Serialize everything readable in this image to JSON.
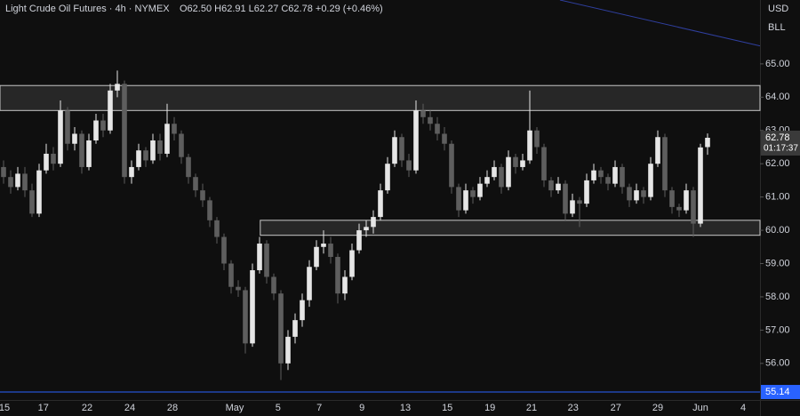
{
  "chart_data": {
    "type": "candlestick",
    "title": "Light Crude Oil Futures · 4h · NYMEX",
    "quote": "O62.50 H62.91 L62.27 C62.78 +0.29 (+0.46%)",
    "currency": "USD",
    "unit": "BLL",
    "up_color": "#e6e6e6",
    "down_color": "#5e5e5e",
    "ylim": [
      54.9,
      66.92
    ],
    "yticks": [
      {
        "value": 56,
        "label": "56.00"
      },
      {
        "value": 57,
        "label": "57.00"
      },
      {
        "value": 58,
        "label": "58.00"
      },
      {
        "value": 59,
        "label": "59.00"
      },
      {
        "value": 60,
        "label": "60.00"
      },
      {
        "value": 61,
        "label": "61.00"
      },
      {
        "value": 62,
        "label": "62.00"
      },
      {
        "value": 63,
        "label": "63.00"
      },
      {
        "value": 64,
        "label": "64.00"
      },
      {
        "value": 65,
        "label": "65.00"
      }
    ],
    "xlim": [
      -0.5,
      106.375
    ],
    "xticks": [
      {
        "value": 0.125,
        "label": "15"
      },
      {
        "value": 5.6,
        "label": "17"
      },
      {
        "value": 11.75,
        "label": "22"
      },
      {
        "value": 17.75,
        "label": "24"
      },
      {
        "value": 23.75,
        "label": "28"
      },
      {
        "value": 32.5,
        "label": "May"
      },
      {
        "value": 38.6,
        "label": "5"
      },
      {
        "value": 44.4,
        "label": "7"
      },
      {
        "value": 50.4,
        "label": "9"
      },
      {
        "value": 56.5,
        "label": "13"
      },
      {
        "value": 62.4,
        "label": "15"
      },
      {
        "value": 68.4,
        "label": "19"
      },
      {
        "value": 74.25,
        "label": "21"
      },
      {
        "value": 80.1,
        "label": "23"
      },
      {
        "value": 86.1,
        "label": "27"
      },
      {
        "value": 92,
        "label": "29"
      },
      {
        "value": 98,
        "label": "Jun"
      },
      {
        "value": 104,
        "label": "4"
      }
    ],
    "candles": [
      [
        61.9,
        62.1,
        61.4,
        61.6
      ],
      [
        61.6,
        61.8,
        61.1,
        61.3
      ],
      [
        61.3,
        61.9,
        61.2,
        61.7
      ],
      [
        61.7,
        61.9,
        61.0,
        61.2
      ],
      [
        61.2,
        61.4,
        60.4,
        60.5
      ],
      [
        60.5,
        62.0,
        60.4,
        61.8
      ],
      [
        61.8,
        62.6,
        61.7,
        62.3
      ],
      [
        62.3,
        62.5,
        61.8,
        62.0
      ],
      [
        62.0,
        63.9,
        61.9,
        63.6
      ],
      [
        63.6,
        63.7,
        62.4,
        62.6
      ],
      [
        62.6,
        63.1,
        62.4,
        62.9
      ],
      [
        62.9,
        63.0,
        61.7,
        61.9
      ],
      [
        61.9,
        62.9,
        61.8,
        62.7
      ],
      [
        62.7,
        63.5,
        62.6,
        63.3
      ],
      [
        63.3,
        63.5,
        62.8,
        63.0
      ],
      [
        63.0,
        64.4,
        62.9,
        64.2
      ],
      [
        64.2,
        64.8,
        64.0,
        64.4
      ],
      [
        64.4,
        64.5,
        61.4,
        61.6
      ],
      [
        61.6,
        62.1,
        61.4,
        61.9
      ],
      [
        61.9,
        62.6,
        61.8,
        62.4
      ],
      [
        62.4,
        62.5,
        61.9,
        62.1
      ],
      [
        62.1,
        62.9,
        62.0,
        62.7
      ],
      [
        62.7,
        62.9,
        62.1,
        62.3
      ],
      [
        62.3,
        63.8,
        62.2,
        63.2
      ],
      [
        63.2,
        63.4,
        62.7,
        62.9
      ],
      [
        62.9,
        63.0,
        62.0,
        62.2
      ],
      [
        62.2,
        62.3,
        61.4,
        61.6
      ],
      [
        61.6,
        61.7,
        61.0,
        61.2
      ],
      [
        61.2,
        61.4,
        60.7,
        60.9
      ],
      [
        60.9,
        61.0,
        60.1,
        60.3
      ],
      [
        60.3,
        60.4,
        59.6,
        59.8
      ],
      [
        59.8,
        59.9,
        58.8,
        59.0
      ],
      [
        59.0,
        59.1,
        58.1,
        58.3
      ],
      [
        58.3,
        58.5,
        58.0,
        58.2
      ],
      [
        58.2,
        58.3,
        56.3,
        56.6
      ],
      [
        56.6,
        59.0,
        56.5,
        58.8
      ],
      [
        58.8,
        59.8,
        58.7,
        59.6
      ],
      [
        59.6,
        59.7,
        58.4,
        58.6
      ],
      [
        58.6,
        58.7,
        57.9,
        58.1
      ],
      [
        58.1,
        58.2,
        55.5,
        56.0
      ],
      [
        56.0,
        57.0,
        55.8,
        56.8
      ],
      [
        56.8,
        57.5,
        56.6,
        57.3
      ],
      [
        57.3,
        58.1,
        57.1,
        57.9
      ],
      [
        57.9,
        59.1,
        57.7,
        58.9
      ],
      [
        58.9,
        59.7,
        58.8,
        59.5
      ],
      [
        59.5,
        60.0,
        59.3,
        59.6
      ],
      [
        59.6,
        59.8,
        59.0,
        59.2
      ],
      [
        59.2,
        59.3,
        57.8,
        58.1
      ],
      [
        58.1,
        58.8,
        57.9,
        58.6
      ],
      [
        58.6,
        59.6,
        58.5,
        59.4
      ],
      [
        59.4,
        60.2,
        59.3,
        60.0
      ],
      [
        60.0,
        60.3,
        59.8,
        60.1
      ],
      [
        60.1,
        60.6,
        59.9,
        60.4
      ],
      [
        60.4,
        61.4,
        60.3,
        61.2
      ],
      [
        61.2,
        62.2,
        61.1,
        62.0
      ],
      [
        62.0,
        63.0,
        61.9,
        62.8
      ],
      [
        62.8,
        62.9,
        61.9,
        62.1
      ],
      [
        62.1,
        62.3,
        61.6,
        61.8
      ],
      [
        61.8,
        63.9,
        61.7,
        63.6
      ],
      [
        63.6,
        63.8,
        63.2,
        63.4
      ],
      [
        63.4,
        63.6,
        63.0,
        63.2
      ],
      [
        63.2,
        63.4,
        62.7,
        62.9
      ],
      [
        62.9,
        63.1,
        62.4,
        62.6
      ],
      [
        62.6,
        62.7,
        61.1,
        61.3
      ],
      [
        61.3,
        61.4,
        60.4,
        60.6
      ],
      [
        60.6,
        61.4,
        60.5,
        61.2
      ],
      [
        61.2,
        61.3,
        60.8,
        61.0
      ],
      [
        61.0,
        61.6,
        60.9,
        61.4
      ],
      [
        61.4,
        61.8,
        61.3,
        61.6
      ],
      [
        61.6,
        62.1,
        61.5,
        61.9
      ],
      [
        61.9,
        62.0,
        61.1,
        61.3
      ],
      [
        61.3,
        62.4,
        61.2,
        62.2
      ],
      [
        62.2,
        62.3,
        61.7,
        61.9
      ],
      [
        61.9,
        62.3,
        61.8,
        62.1
      ],
      [
        62.1,
        64.2,
        62.0,
        63.0
      ],
      [
        63.0,
        63.1,
        62.3,
        62.5
      ],
      [
        62.5,
        62.6,
        61.3,
        61.5
      ],
      [
        61.5,
        61.6,
        61.0,
        61.2
      ],
      [
        61.2,
        61.6,
        61.1,
        61.4
      ],
      [
        61.4,
        61.5,
        60.3,
        60.5
      ],
      [
        60.5,
        61.1,
        60.4,
        60.9
      ],
      [
        60.9,
        61.0,
        60.1,
        60.8
      ],
      [
        60.8,
        61.7,
        60.7,
        61.5
      ],
      [
        61.5,
        62.0,
        61.4,
        61.8
      ],
      [
        61.8,
        61.9,
        61.4,
        61.6
      ],
      [
        61.6,
        61.7,
        61.2,
        61.4
      ],
      [
        61.4,
        62.1,
        61.3,
        61.9
      ],
      [
        61.9,
        62.0,
        61.1,
        61.3
      ],
      [
        61.3,
        61.4,
        60.7,
        60.9
      ],
      [
        60.9,
        61.4,
        60.8,
        61.2
      ],
      [
        61.2,
        61.3,
        60.8,
        61.0
      ],
      [
        61.0,
        62.2,
        60.9,
        62.0
      ],
      [
        62.0,
        63.0,
        61.9,
        62.8
      ],
      [
        62.8,
        62.9,
        61.0,
        61.2
      ],
      [
        61.2,
        61.3,
        60.5,
        60.7
      ],
      [
        60.7,
        60.8,
        60.4,
        60.6
      ],
      [
        60.6,
        61.4,
        60.5,
        61.2
      ],
      [
        61.2,
        61.3,
        59.8,
        60.2
      ],
      [
        60.2,
        62.6,
        60.1,
        62.49
      ],
      [
        62.5,
        62.91,
        62.27,
        62.78
      ]
    ],
    "zones": [
      {
        "x0": -0.5,
        "low": 63.6,
        "high": 64.35
      },
      {
        "x0": 36.1,
        "low": 59.85,
        "high": 60.3
      }
    ],
    "trendline": {
      "x": [
        78.25,
        106.375
      ],
      "y": [
        66.92,
        65.54
      ],
      "color": "#2f3f9e"
    },
    "hline": {
      "value": 55.14,
      "label": "55.14",
      "color": "#2962ff"
    },
    "last_price": {
      "value": 62.78,
      "label": "62.78",
      "countdown": "01:17:37"
    }
  }
}
